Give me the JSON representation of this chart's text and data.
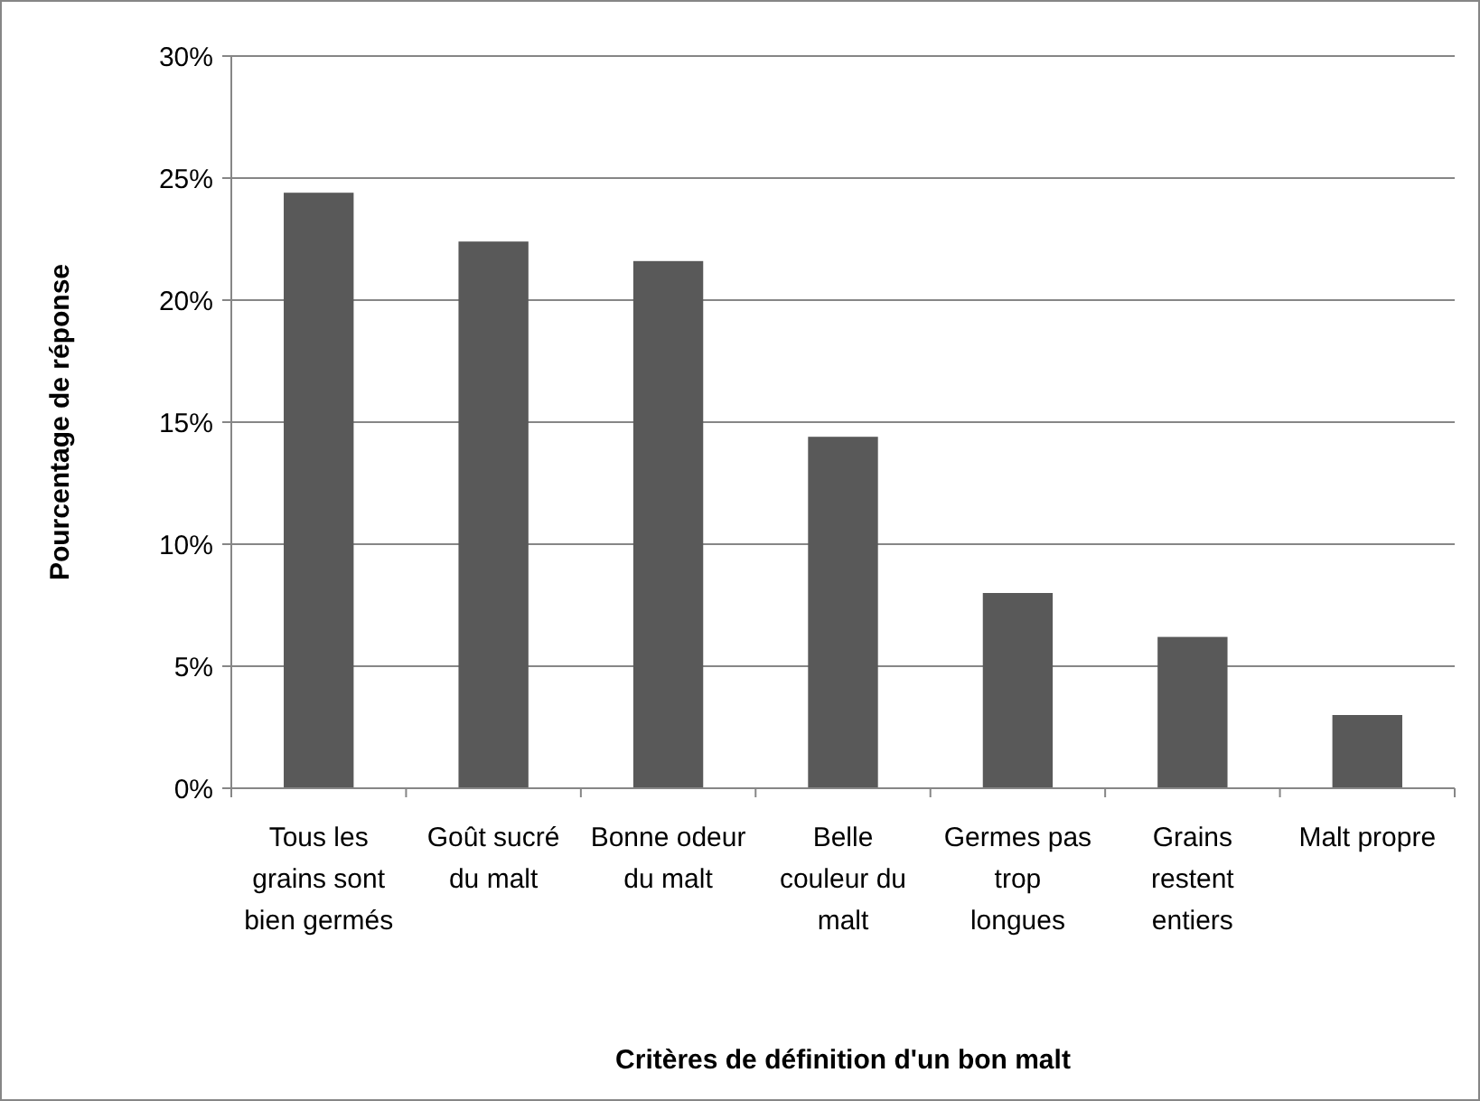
{
  "chart_data": {
    "type": "bar",
    "xlabel": "Critères de définition d'un bon malt",
    "ylabel": "Pourcentage de réponse",
    "categories": [
      "Tous les grains sont bien germés",
      "Goût sucré du malt",
      "Bonne odeur du malt",
      "Belle couleur du malt",
      "Germes pas trop longues",
      "Grains restent entiers",
      "Malt propre"
    ],
    "values": [
      24.4,
      22.4,
      21.6,
      14.4,
      8.0,
      6.2,
      3.0
    ],
    "color": "#595959",
    "ylim": [
      0,
      30
    ],
    "yticks": [
      {
        "value": 0,
        "label": "0%"
      },
      {
        "value": 5,
        "label": "5%"
      },
      {
        "value": 10,
        "label": "10%"
      },
      {
        "value": 15,
        "label": "15%"
      },
      {
        "value": 20,
        "label": "20%"
      },
      {
        "value": 25,
        "label": "25%"
      },
      {
        "value": 30,
        "label": "30%"
      }
    ],
    "grid": "y"
  }
}
